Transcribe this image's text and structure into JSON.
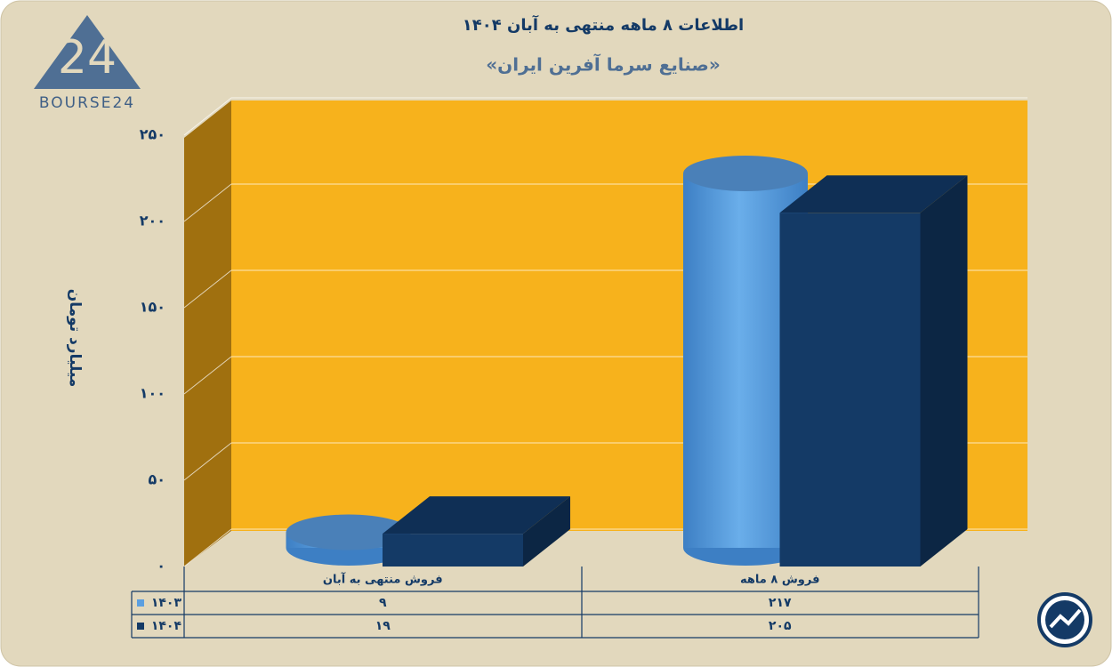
{
  "logo": "BOURSE24",
  "chart_data": {
    "type": "bar3d",
    "title": "اطلاعات ۸ ماهه منتهی به آبان ۱۴۰۴",
    "subtitle": "«صنایع سرما آفرین ایران»",
    "y_label": "میلیارد تومان",
    "categories": [
      "فروش منتهی به  آبان",
      "فروش ۸  ماهه"
    ],
    "series": [
      {
        "name": "۱۴۰۳",
        "color": "#5b9fe0",
        "shape": "cylinder",
        "values": [
          9,
          217
        ],
        "value_labels": [
          "۹",
          "۲۱۷"
        ]
      },
      {
        "name": "۱۴۰۴",
        "color": "#143a66",
        "shape": "box",
        "values": [
          19,
          205
        ],
        "value_labels": [
          "۱۹",
          "۲۰۵"
        ]
      }
    ],
    "ylim": [
      0,
      250
    ],
    "yticks": [
      {
        "value": 0,
        "label": "۰"
      },
      {
        "value": 50,
        "label": "۵۰"
      },
      {
        "value": 100,
        "label": "۱۰۰"
      },
      {
        "value": 150,
        "label": "۱۵۰"
      },
      {
        "value": 200,
        "label": "۲۰۰"
      },
      {
        "value": 250,
        "label": "۲۵۰"
      }
    ],
    "grid": true
  }
}
